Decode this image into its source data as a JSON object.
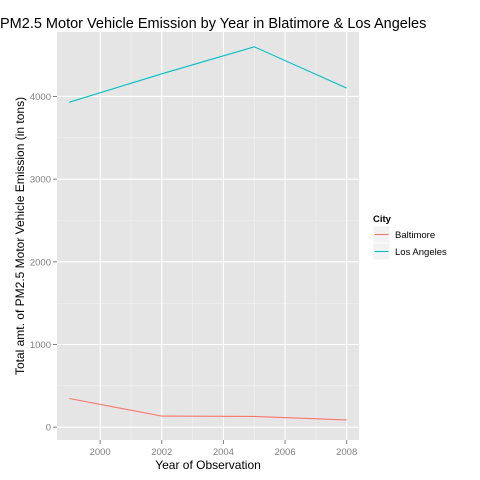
{
  "chart_data": {
    "type": "line",
    "title": "PM2.5 Motor Vehicle Emission by Year in Blatimore & Los Angeles",
    "xlabel": "Year of Observation",
    "ylabel": "Total amt. of PM2.5 Motor Vehicle Emission (in tons)",
    "x": [
      1999,
      2002,
      2005,
      2008
    ],
    "xlim": [
      1998.6,
      2008.4
    ],
    "ylim": [
      -155,
      4780
    ],
    "xticks": [
      2000,
      2002,
      2004,
      2006,
      2008
    ],
    "yticks": [
      0,
      1000,
      2000,
      3000,
      4000
    ],
    "grid": true,
    "legend": {
      "title": "City",
      "placement": "right"
    },
    "series": [
      {
        "name": "Baltimore",
        "color": "#f8766d",
        "values": [
          347,
          134,
          130,
          88
        ]
      },
      {
        "name": "Los Angeles",
        "color": "#00bfc4",
        "values": [
          3931,
          4274,
          4601,
          4101
        ]
      }
    ]
  },
  "theme": {
    "panel_bg": "#e5e5e5",
    "grid_major": "#ffffff",
    "grid_minor": "#f2f2f2",
    "tick_color": "#7f7f7f"
  }
}
